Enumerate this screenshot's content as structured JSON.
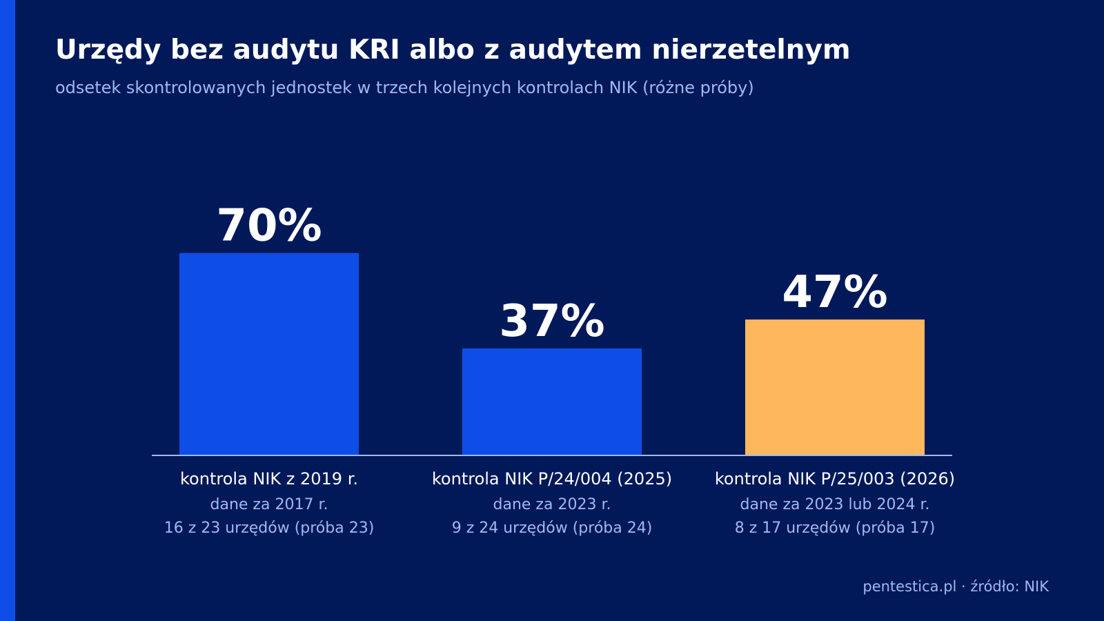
{
  "title": "Urzędy bez audytu KRI albo z audytem nierzetelnym",
  "subtitle": "odsetek skontrolowanych jednostek w trzech kolejnych kontrolach NIK (różne próby)",
  "footer": "pentestica.pl · źródło: NIK",
  "colors": {
    "background": "#011959",
    "accent": "#0e4ee6",
    "highlight": "#fdb85d",
    "axis": "#a3b8f0",
    "text": "#ffffff",
    "muted_text": "#a3b8f0"
  },
  "chart_data": {
    "type": "bar",
    "title": "Urzędy bez audytu KRI albo z audytem nierzetelnym",
    "subtitle": "odsetek skontrolowanych jednostek w trzech kolejnych kontrolach NIK (różne próby)",
    "unit": "%",
    "ylim": [
      0,
      100
    ],
    "grid": false,
    "categories": [
      "kontrola NIK z 2019 r.",
      "kontrola NIK P/24/004 (2025)",
      "kontrola NIK P/25/003 (2026)"
    ],
    "values": [
      70,
      37,
      47
    ],
    "value_labels": [
      "70%",
      "37%",
      "47%"
    ],
    "category_details": [
      [
        "dane za 2017 r.",
        "16 z 23 urzędów (próba 23)"
      ],
      [
        "dane za 2023 r.",
        "9 z 24 urzędów (próba 24)"
      ],
      [
        "dane za 2023 lub 2024 r.",
        "8 z 17 urzędów (próba 17)"
      ]
    ],
    "bar_colors": [
      "#0e4ee6",
      "#0e4ee6",
      "#fdb85d"
    ]
  }
}
